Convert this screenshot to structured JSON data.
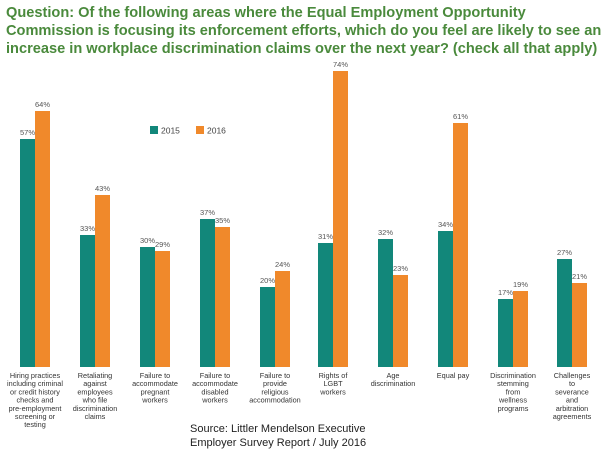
{
  "title": "Question: Of the following areas where the Equal Employment Opportunity Commission is focusing its enforcement efforts, which do you feel are likely to see an increase in workplace discrimination claims over the next year? (check all that apply)",
  "source": [
    "Source: Littler Mendelson Executive",
    "Employer Survey Report / July 2016"
  ],
  "colors": {
    "s2015": "#12877a",
    "s2016": "#f0892b"
  },
  "chart_data": {
    "type": "bar",
    "title": "Question: Of the following areas where the Equal Employment Opportunity Commission is focusing its enforcement efforts, which do you feel are likely to see an increase in workplace discrimination claims over the next year? (check all that apply)",
    "xlabel": "",
    "ylabel": "",
    "ylim": [
      0,
      80
    ],
    "unit": "%",
    "legend_position": "top-left",
    "grid": false,
    "categories": [
      [
        "Hiring practices",
        "including criminal",
        "or credit history",
        "checks and",
        "pre-employment",
        "screening or",
        "testing"
      ],
      [
        "Retaliating",
        "against",
        "employees",
        "who file",
        "discrimination",
        "claims"
      ],
      [
        "Failure to",
        "accommodate",
        "pregnant",
        "workers"
      ],
      [
        "Failure to",
        "accommodate",
        "disabled",
        "workers"
      ],
      [
        "Failure to",
        "provide",
        "religious",
        "accommodation"
      ],
      [
        "Rights of",
        "LGBT",
        "workers"
      ],
      [
        "Age",
        "discrimination"
      ],
      [
        "Equal pay"
      ],
      [
        "Discrimination",
        "stemming",
        "from",
        "wellness",
        "programs"
      ],
      [
        "Challenges",
        "to",
        "severance",
        "and",
        "arbitration",
        "agreements"
      ]
    ],
    "series": [
      {
        "name": "2015",
        "values": [
          57,
          33,
          30,
          37,
          20,
          31,
          32,
          34,
          17,
          27
        ]
      },
      {
        "name": "2016",
        "values": [
          64,
          43,
          29,
          35,
          24,
          74,
          23,
          61,
          19,
          21
        ]
      }
    ]
  }
}
